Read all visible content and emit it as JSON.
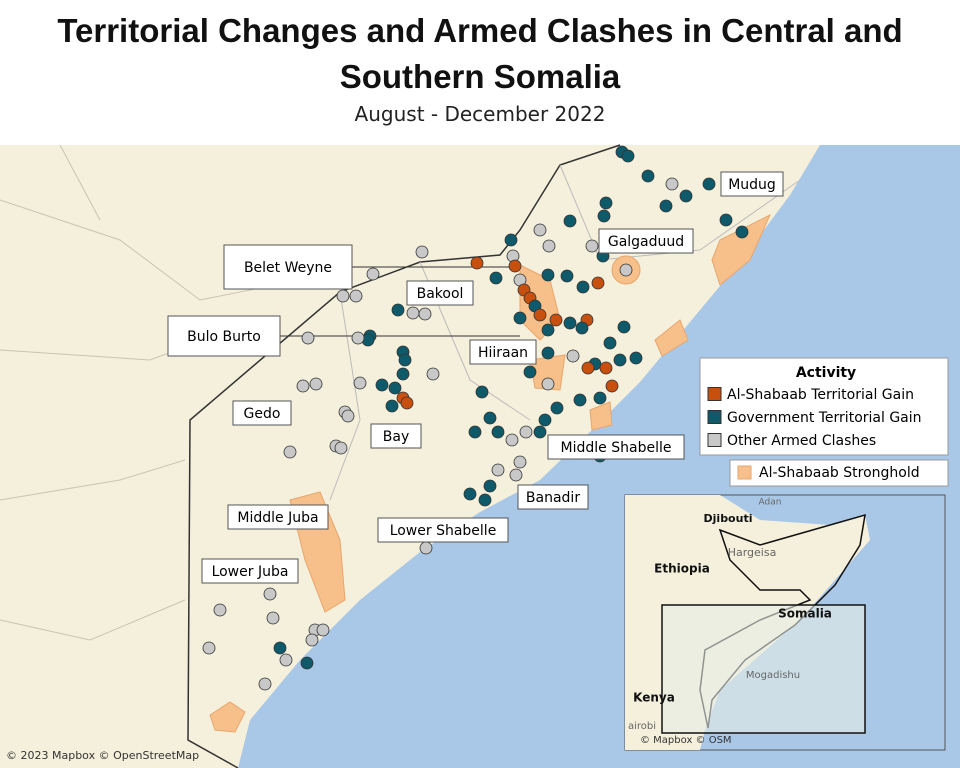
{
  "title": "Territorial Changes and Armed Clashes in Central and Southern Somalia",
  "subtitle": "August - December 2022",
  "regions": [
    "Mudug",
    "Galgaduud",
    "Belet Weyne",
    "Bakool",
    "Bulo Burto",
    "Hiiraan",
    "Gedo",
    "Bay",
    "Middle Shabelle",
    "Banadir",
    "Middle Juba",
    "Lower Shabelle",
    "Lower Juba"
  ],
  "legend": {
    "title": "Activity",
    "items": [
      {
        "label": "Al-Shabaab Territorial Gain",
        "color": "#c8500f"
      },
      {
        "label": "Government Territorial Gain",
        "color": "#0e5a6a"
      },
      {
        "label": "Other Armed Clashes",
        "color": "#c8c8c8"
      }
    ],
    "stronghold": {
      "label": "Al-Shabaab Stronghold",
      "color": "#f7c08a"
    }
  },
  "inset": {
    "labels": [
      "Djibouti",
      "Adan",
      "Hargeisa",
      "Ethiopia",
      "Somalia",
      "Mogadishu",
      "Kenya",
      "airobi"
    ],
    "attribution": "© Mapbox © OSM"
  },
  "attribution": "© 2023 Mapbox © OpenStreetMap"
}
